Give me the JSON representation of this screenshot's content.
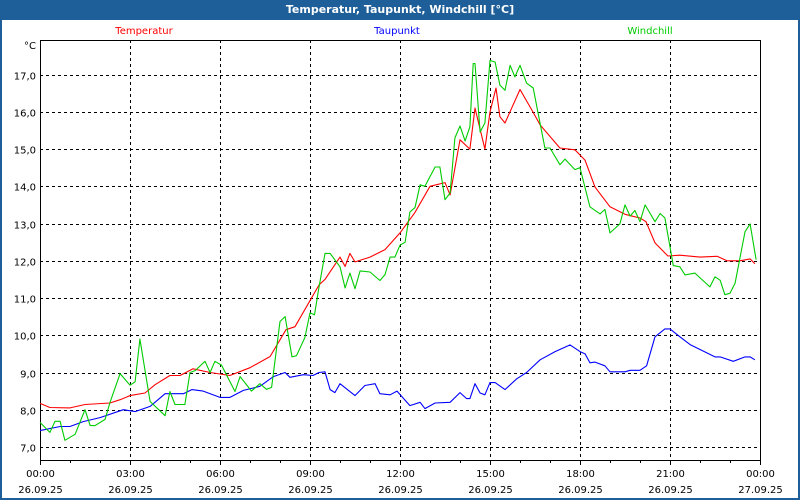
{
  "window": {
    "title": "Temperatur, Taupunkt, Windchill [°C]"
  },
  "chart_data": {
    "type": "line",
    "title": "Temperatur, Taupunkt, Windchill [°C]",
    "ylabel": "°C",
    "xlabel": "",
    "ylim": [
      6.65,
      17.93
    ],
    "xlim": [
      0,
      24
    ],
    "grid": true,
    "legend_placement": "top",
    "yticks": [
      7,
      8,
      9,
      10,
      11,
      12,
      13,
      14,
      15,
      16,
      17
    ],
    "ytick_labels": [
      "7,0",
      "8,0",
      "9,0",
      "10,0",
      "11,0",
      "12,0",
      "13,0",
      "14,0",
      "15,0",
      "16,0",
      "17,0"
    ],
    "xticks": [
      0,
      3,
      6,
      9,
      12,
      15,
      18,
      21,
      24
    ],
    "xtick_labels": [
      {
        "time": "00:00",
        "date": "26.09.25"
      },
      {
        "time": "03:00",
        "date": "26.09.25"
      },
      {
        "time": "06:00",
        "date": "26.09.25"
      },
      {
        "time": "09:00",
        "date": "26.09.25"
      },
      {
        "time": "12:00",
        "date": "26.09.25"
      },
      {
        "time": "15:00",
        "date": "26.09.25"
      },
      {
        "time": "18:00",
        "date": "26.09.25"
      },
      {
        "time": "21:00",
        "date": "26.09.25"
      },
      {
        "time": "00:00",
        "date": "27.09.25"
      }
    ],
    "series": [
      {
        "name": "Temperatur",
        "color": "#ff0000",
        "points": [
          [
            0,
            8.17
          ],
          [
            0.33,
            8.06
          ],
          [
            1,
            8.05
          ],
          [
            1.5,
            8.14
          ],
          [
            2.33,
            8.18
          ],
          [
            2.67,
            8.27
          ],
          [
            3,
            8.38
          ],
          [
            3.5,
            8.45
          ],
          [
            3.83,
            8.67
          ],
          [
            4.33,
            8.92
          ],
          [
            4.67,
            8.92
          ],
          [
            5.1,
            9.1
          ],
          [
            5.67,
            9.0
          ],
          [
            6.33,
            8.92
          ],
          [
            7,
            9.13
          ],
          [
            7.67,
            9.43
          ],
          [
            8.2,
            10.15
          ],
          [
            8.5,
            10.23
          ],
          [
            9.3,
            11.35
          ],
          [
            9.5,
            11.5
          ],
          [
            10,
            12.1
          ],
          [
            10.17,
            11.85
          ],
          [
            10.33,
            12.2
          ],
          [
            10.5,
            11.97
          ],
          [
            11,
            12.1
          ],
          [
            11.5,
            12.3
          ],
          [
            12,
            12.75
          ],
          [
            12.5,
            13.3
          ],
          [
            13,
            14.0
          ],
          [
            13.5,
            14.1
          ],
          [
            13.67,
            13.77
          ],
          [
            14,
            15.25
          ],
          [
            14.33,
            15.0
          ],
          [
            14.5,
            16.1
          ],
          [
            14.83,
            15.0
          ],
          [
            15,
            16.0
          ],
          [
            15.2,
            16.64
          ],
          [
            15.33,
            15.87
          ],
          [
            15.5,
            15.7
          ],
          [
            16,
            16.6
          ],
          [
            16.43,
            16.0
          ],
          [
            16.67,
            15.65
          ],
          [
            17.33,
            15.03
          ],
          [
            17.83,
            14.98
          ],
          [
            18.17,
            14.7
          ],
          [
            18.5,
            13.98
          ],
          [
            19,
            13.45
          ],
          [
            19.5,
            13.25
          ],
          [
            20,
            13.15
          ],
          [
            20.2,
            13.05
          ],
          [
            20.5,
            12.48
          ],
          [
            20.93,
            12.13
          ],
          [
            21.33,
            12.15
          ],
          [
            22,
            12.1
          ],
          [
            22.57,
            12.12
          ],
          [
            22.9,
            12.0
          ],
          [
            23.33,
            12.0
          ],
          [
            23.67,
            12.05
          ],
          [
            23.83,
            11.92
          ]
        ]
      },
      {
        "name": "Taupunkt",
        "color": "#0000ff",
        "points": [
          [
            0,
            7.44
          ],
          [
            0.67,
            7.55
          ],
          [
            1,
            7.55
          ],
          [
            1.44,
            7.68
          ],
          [
            2,
            7.79
          ],
          [
            2.78,
            8.0
          ],
          [
            3.17,
            7.95
          ],
          [
            3.67,
            8.09
          ],
          [
            4.17,
            8.43
          ],
          [
            4.78,
            8.43
          ],
          [
            5.06,
            8.54
          ],
          [
            5.44,
            8.5
          ],
          [
            6,
            8.33
          ],
          [
            6.33,
            8.33
          ],
          [
            6.78,
            8.52
          ],
          [
            7.33,
            8.63
          ],
          [
            7.78,
            8.89
          ],
          [
            8.17,
            9.0
          ],
          [
            8.33,
            8.87
          ],
          [
            8.78,
            8.94
          ],
          [
            9.1,
            8.92
          ],
          [
            9.3,
            9.0
          ],
          [
            9.5,
            9.02
          ],
          [
            9.67,
            8.54
          ],
          [
            9.83,
            8.46
          ],
          [
            10,
            8.7
          ],
          [
            10.5,
            8.38
          ],
          [
            10.83,
            8.65
          ],
          [
            11.17,
            8.7
          ],
          [
            11.33,
            8.43
          ],
          [
            11.67,
            8.4
          ],
          [
            11.9,
            8.5
          ],
          [
            12.33,
            8.11
          ],
          [
            12.67,
            8.2
          ],
          [
            12.83,
            8.03
          ],
          [
            13.17,
            8.18
          ],
          [
            13.67,
            8.2
          ],
          [
            14,
            8.46
          ],
          [
            14.22,
            8.3
          ],
          [
            14.33,
            8.3
          ],
          [
            14.5,
            8.7
          ],
          [
            14.67,
            8.45
          ],
          [
            14.83,
            8.4
          ],
          [
            15,
            8.73
          ],
          [
            15.17,
            8.73
          ],
          [
            15.5,
            8.54
          ],
          [
            15.89,
            8.83
          ],
          [
            16.22,
            9.0
          ],
          [
            16.67,
            9.34
          ],
          [
            17.17,
            9.56
          ],
          [
            17.67,
            9.74
          ],
          [
            18,
            9.56
          ],
          [
            18.17,
            9.5
          ],
          [
            18.33,
            9.26
          ],
          [
            18.5,
            9.28
          ],
          [
            18.83,
            9.18
          ],
          [
            19,
            9.02
          ],
          [
            19.5,
            9.02
          ],
          [
            19.67,
            9.06
          ],
          [
            20,
            9.06
          ],
          [
            20.22,
            9.18
          ],
          [
            20.5,
            9.96
          ],
          [
            20.83,
            10.17
          ],
          [
            21,
            10.17
          ],
          [
            21.33,
            9.96
          ],
          [
            21.67,
            9.75
          ],
          [
            22.5,
            9.42
          ],
          [
            22.67,
            9.42
          ],
          [
            23.11,
            9.3
          ],
          [
            23.5,
            9.42
          ],
          [
            23.67,
            9.42
          ],
          [
            23.83,
            9.34
          ]
        ]
      },
      {
        "name": "Windchill",
        "color": "#00cc00",
        "points": [
          [
            0,
            7.66
          ],
          [
            0.33,
            7.39
          ],
          [
            0.5,
            7.69
          ],
          [
            0.67,
            7.69
          ],
          [
            0.83,
            7.18
          ],
          [
            1.17,
            7.34
          ],
          [
            1.5,
            8.0
          ],
          [
            1.67,
            7.58
          ],
          [
            1.83,
            7.57
          ],
          [
            2.17,
            7.74
          ],
          [
            2.33,
            8.19
          ],
          [
            2.67,
            8.97
          ],
          [
            3,
            8.66
          ],
          [
            3.17,
            8.75
          ],
          [
            3.33,
            9.9
          ],
          [
            3.67,
            8.22
          ],
          [
            4.17,
            7.84
          ],
          [
            4.33,
            8.49
          ],
          [
            4.5,
            8.14
          ],
          [
            4.83,
            8.14
          ],
          [
            5,
            9.0
          ],
          [
            5.17,
            9.05
          ],
          [
            5.5,
            9.3
          ],
          [
            5.67,
            9.0
          ],
          [
            5.83,
            9.3
          ],
          [
            6.05,
            9.2
          ],
          [
            6.5,
            8.49
          ],
          [
            6.67,
            8.89
          ],
          [
            7.05,
            8.5
          ],
          [
            7.33,
            8.7
          ],
          [
            7.55,
            8.55
          ],
          [
            7.72,
            8.6
          ],
          [
            8,
            10.37
          ],
          [
            8.17,
            10.5
          ],
          [
            8.4,
            9.42
          ],
          [
            8.55,
            9.45
          ],
          [
            8.83,
            9.94
          ],
          [
            9.0,
            10.6
          ],
          [
            9.15,
            10.55
          ],
          [
            9.28,
            11.2
          ],
          [
            9.5,
            12.2
          ],
          [
            9.67,
            12.2
          ],
          [
            10,
            11.84
          ],
          [
            10.17,
            11.27
          ],
          [
            10.33,
            11.67
          ],
          [
            10.5,
            11.25
          ],
          [
            10.67,
            11.73
          ],
          [
            11,
            11.7
          ],
          [
            11.33,
            11.47
          ],
          [
            11.5,
            11.63
          ],
          [
            11.67,
            12.1
          ],
          [
            11.83,
            12.1
          ],
          [
            12,
            12.42
          ],
          [
            12.17,
            12.5
          ],
          [
            12.33,
            13.31
          ],
          [
            12.5,
            13.43
          ],
          [
            12.67,
            14.04
          ],
          [
            12.83,
            14.0
          ],
          [
            13.17,
            14.52
          ],
          [
            13.33,
            14.52
          ],
          [
            13.5,
            13.64
          ],
          [
            13.67,
            13.82
          ],
          [
            13.83,
            15.3
          ],
          [
            14,
            15.62
          ],
          [
            14.17,
            15.22
          ],
          [
            14.33,
            15.6
          ],
          [
            14.44,
            17.3
          ],
          [
            14.5,
            17.3
          ],
          [
            14.67,
            15.46
          ],
          [
            14.83,
            15.7
          ],
          [
            15,
            17.38
          ],
          [
            15.17,
            17.34
          ],
          [
            15.33,
            16.72
          ],
          [
            15.5,
            16.58
          ],
          [
            15.67,
            17.25
          ],
          [
            15.83,
            16.94
          ],
          [
            16,
            17.25
          ],
          [
            16.22,
            16.77
          ],
          [
            16.44,
            16.64
          ],
          [
            16.83,
            15.03
          ],
          [
            17.0,
            15.03
          ],
          [
            17.33,
            14.58
          ],
          [
            17.5,
            14.73
          ],
          [
            17.83,
            14.45
          ],
          [
            18,
            14.5
          ],
          [
            18.33,
            13.45
          ],
          [
            18.67,
            13.26
          ],
          [
            18.83,
            13.38
          ],
          [
            19,
            12.75
          ],
          [
            19.33,
            12.99
          ],
          [
            19.5,
            13.5
          ],
          [
            19.67,
            13.2
          ],
          [
            19.83,
            13.35
          ],
          [
            20,
            13.05
          ],
          [
            20.17,
            13.5
          ],
          [
            20.5,
            13.05
          ],
          [
            20.67,
            13.27
          ],
          [
            20.83,
            13.15
          ],
          [
            21.11,
            11.87
          ],
          [
            21.33,
            11.84
          ],
          [
            21.5,
            11.62
          ],
          [
            21.83,
            11.67
          ],
          [
            22.33,
            11.3
          ],
          [
            22.5,
            11.57
          ],
          [
            22.67,
            11.48
          ],
          [
            22.83,
            11.09
          ],
          [
            23,
            11.13
          ],
          [
            23.17,
            11.4
          ],
          [
            23.5,
            12.78
          ],
          [
            23.67,
            12.99
          ],
          [
            23.87,
            12.03
          ]
        ]
      }
    ]
  }
}
